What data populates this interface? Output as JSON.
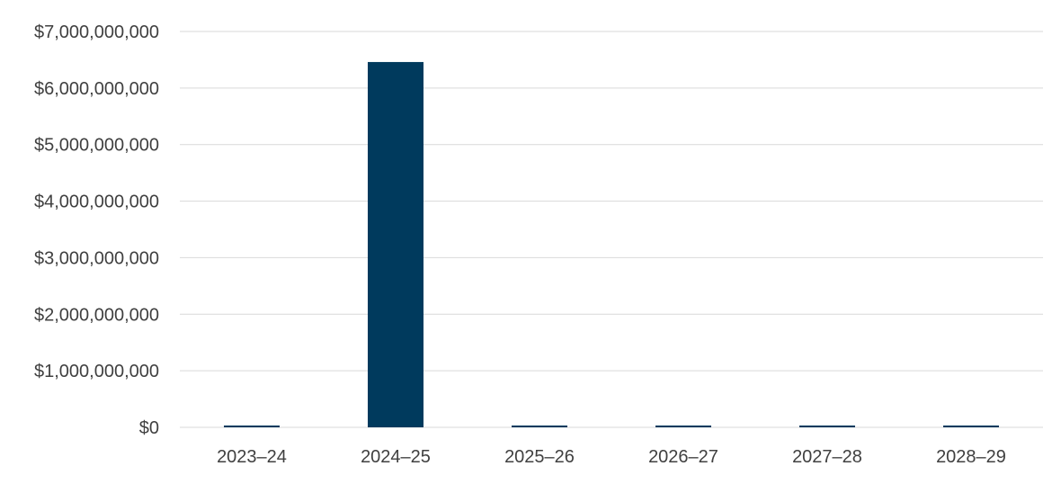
{
  "chart_data": {
    "type": "bar",
    "title": "",
    "xlabel": "",
    "ylabel": "",
    "categories": [
      "2023–24",
      "2024–25",
      "2025–26",
      "2026–27",
      "2027–28",
      "2028–29"
    ],
    "series": [
      {
        "values": [
          30000000,
          6460000000,
          20000000,
          20000000,
          20000000,
          20000000
        ]
      }
    ],
    "ylim": [
      0,
      7000000000
    ],
    "yticks": [
      0,
      1000000000,
      2000000000,
      3000000000,
      4000000000,
      5000000000,
      6000000000,
      7000000000
    ],
    "ytick_labels": [
      "$0",
      "$1,000,000,000",
      "$2,000,000,000",
      "$3,000,000,000",
      "$4,000,000,000",
      "$5,000,000,000",
      "$6,000,000,000",
      "$7,000,000,000"
    ],
    "grid": true,
    "legend": "none",
    "bar_color": "#003a5d"
  }
}
